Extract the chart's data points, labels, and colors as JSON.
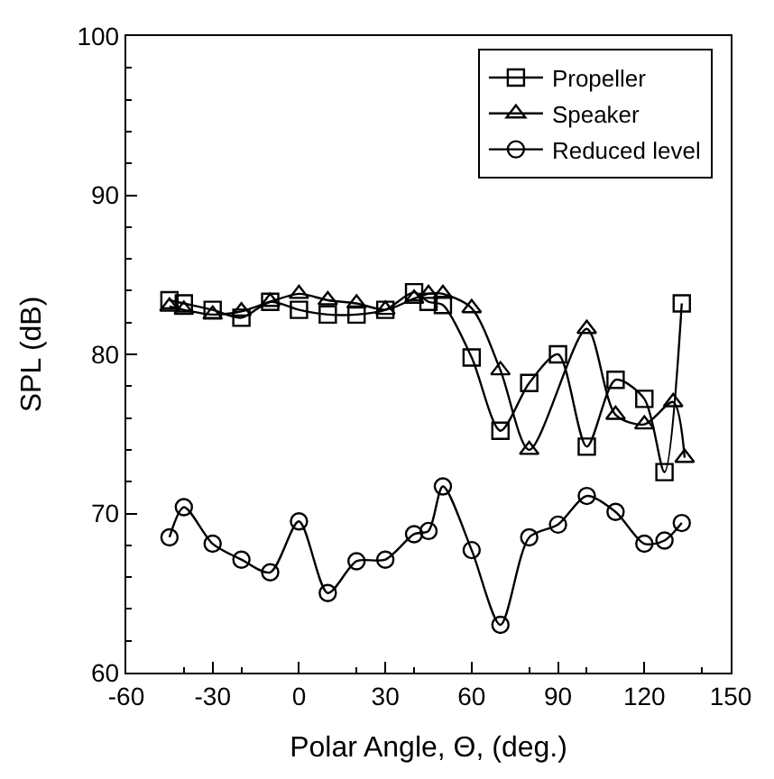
{
  "chart_data": {
    "type": "line",
    "xlabel": "Polar Angle, Θ, (deg.)",
    "ylabel": "SPL (dB)",
    "xlim": [
      -60,
      150
    ],
    "xticks": [
      -60,
      -30,
      0,
      30,
      60,
      90,
      120,
      150
    ],
    "ylim": [
      60,
      100
    ],
    "yticks": [
      60,
      70,
      80,
      90,
      100
    ],
    "legend": "top right",
    "series": [
      {
        "name": "Propeller",
        "color": "#000000",
        "marker": "square",
        "x": [
          -45,
          -40,
          -30,
          -20,
          -10,
          0,
          10,
          20,
          30,
          40,
          45,
          50,
          60,
          70,
          80,
          90,
          100,
          110,
          120,
          127,
          133
        ],
        "values": [
          83.4,
          83.2,
          82.8,
          82.3,
          83.3,
          82.8,
          82.5,
          82.5,
          82.8,
          83.9,
          83.3,
          83.1,
          79.8,
          75.2,
          78.2,
          80,
          74.2,
          78.4,
          77.2,
          72.6,
          83.2
        ]
      },
      {
        "name": "Speaker",
        "color": "#000000",
        "marker": "triangle",
        "x": [
          -45,
          -40,
          -30,
          -20,
          -10,
          0,
          10,
          20,
          30,
          40,
          45,
          50,
          60,
          70,
          80,
          100,
          110,
          120,
          130,
          134
        ],
        "values": [
          83,
          82.8,
          82.5,
          82.7,
          83.3,
          83.8,
          83.4,
          83.2,
          82.8,
          83.5,
          83.8,
          83.8,
          82.9,
          79,
          74,
          81.6,
          76.2,
          75.6,
          77,
          73.5
        ]
      },
      {
        "name": "Reduced level",
        "color": "#000000",
        "marker": "circle",
        "x": [
          -45,
          -40,
          -30,
          -20,
          -10,
          0,
          10,
          20,
          30,
          40,
          45,
          50,
          60,
          70,
          80,
          90,
          100,
          110,
          120,
          127,
          133
        ],
        "values": [
          68.5,
          70.4,
          68.1,
          67.1,
          66.3,
          69.5,
          65,
          67,
          67.1,
          68.7,
          68.9,
          71.7,
          67.7,
          63,
          68.5,
          69.3,
          71.1,
          70.1,
          68.1,
          68.3,
          69.4
        ]
      }
    ]
  }
}
